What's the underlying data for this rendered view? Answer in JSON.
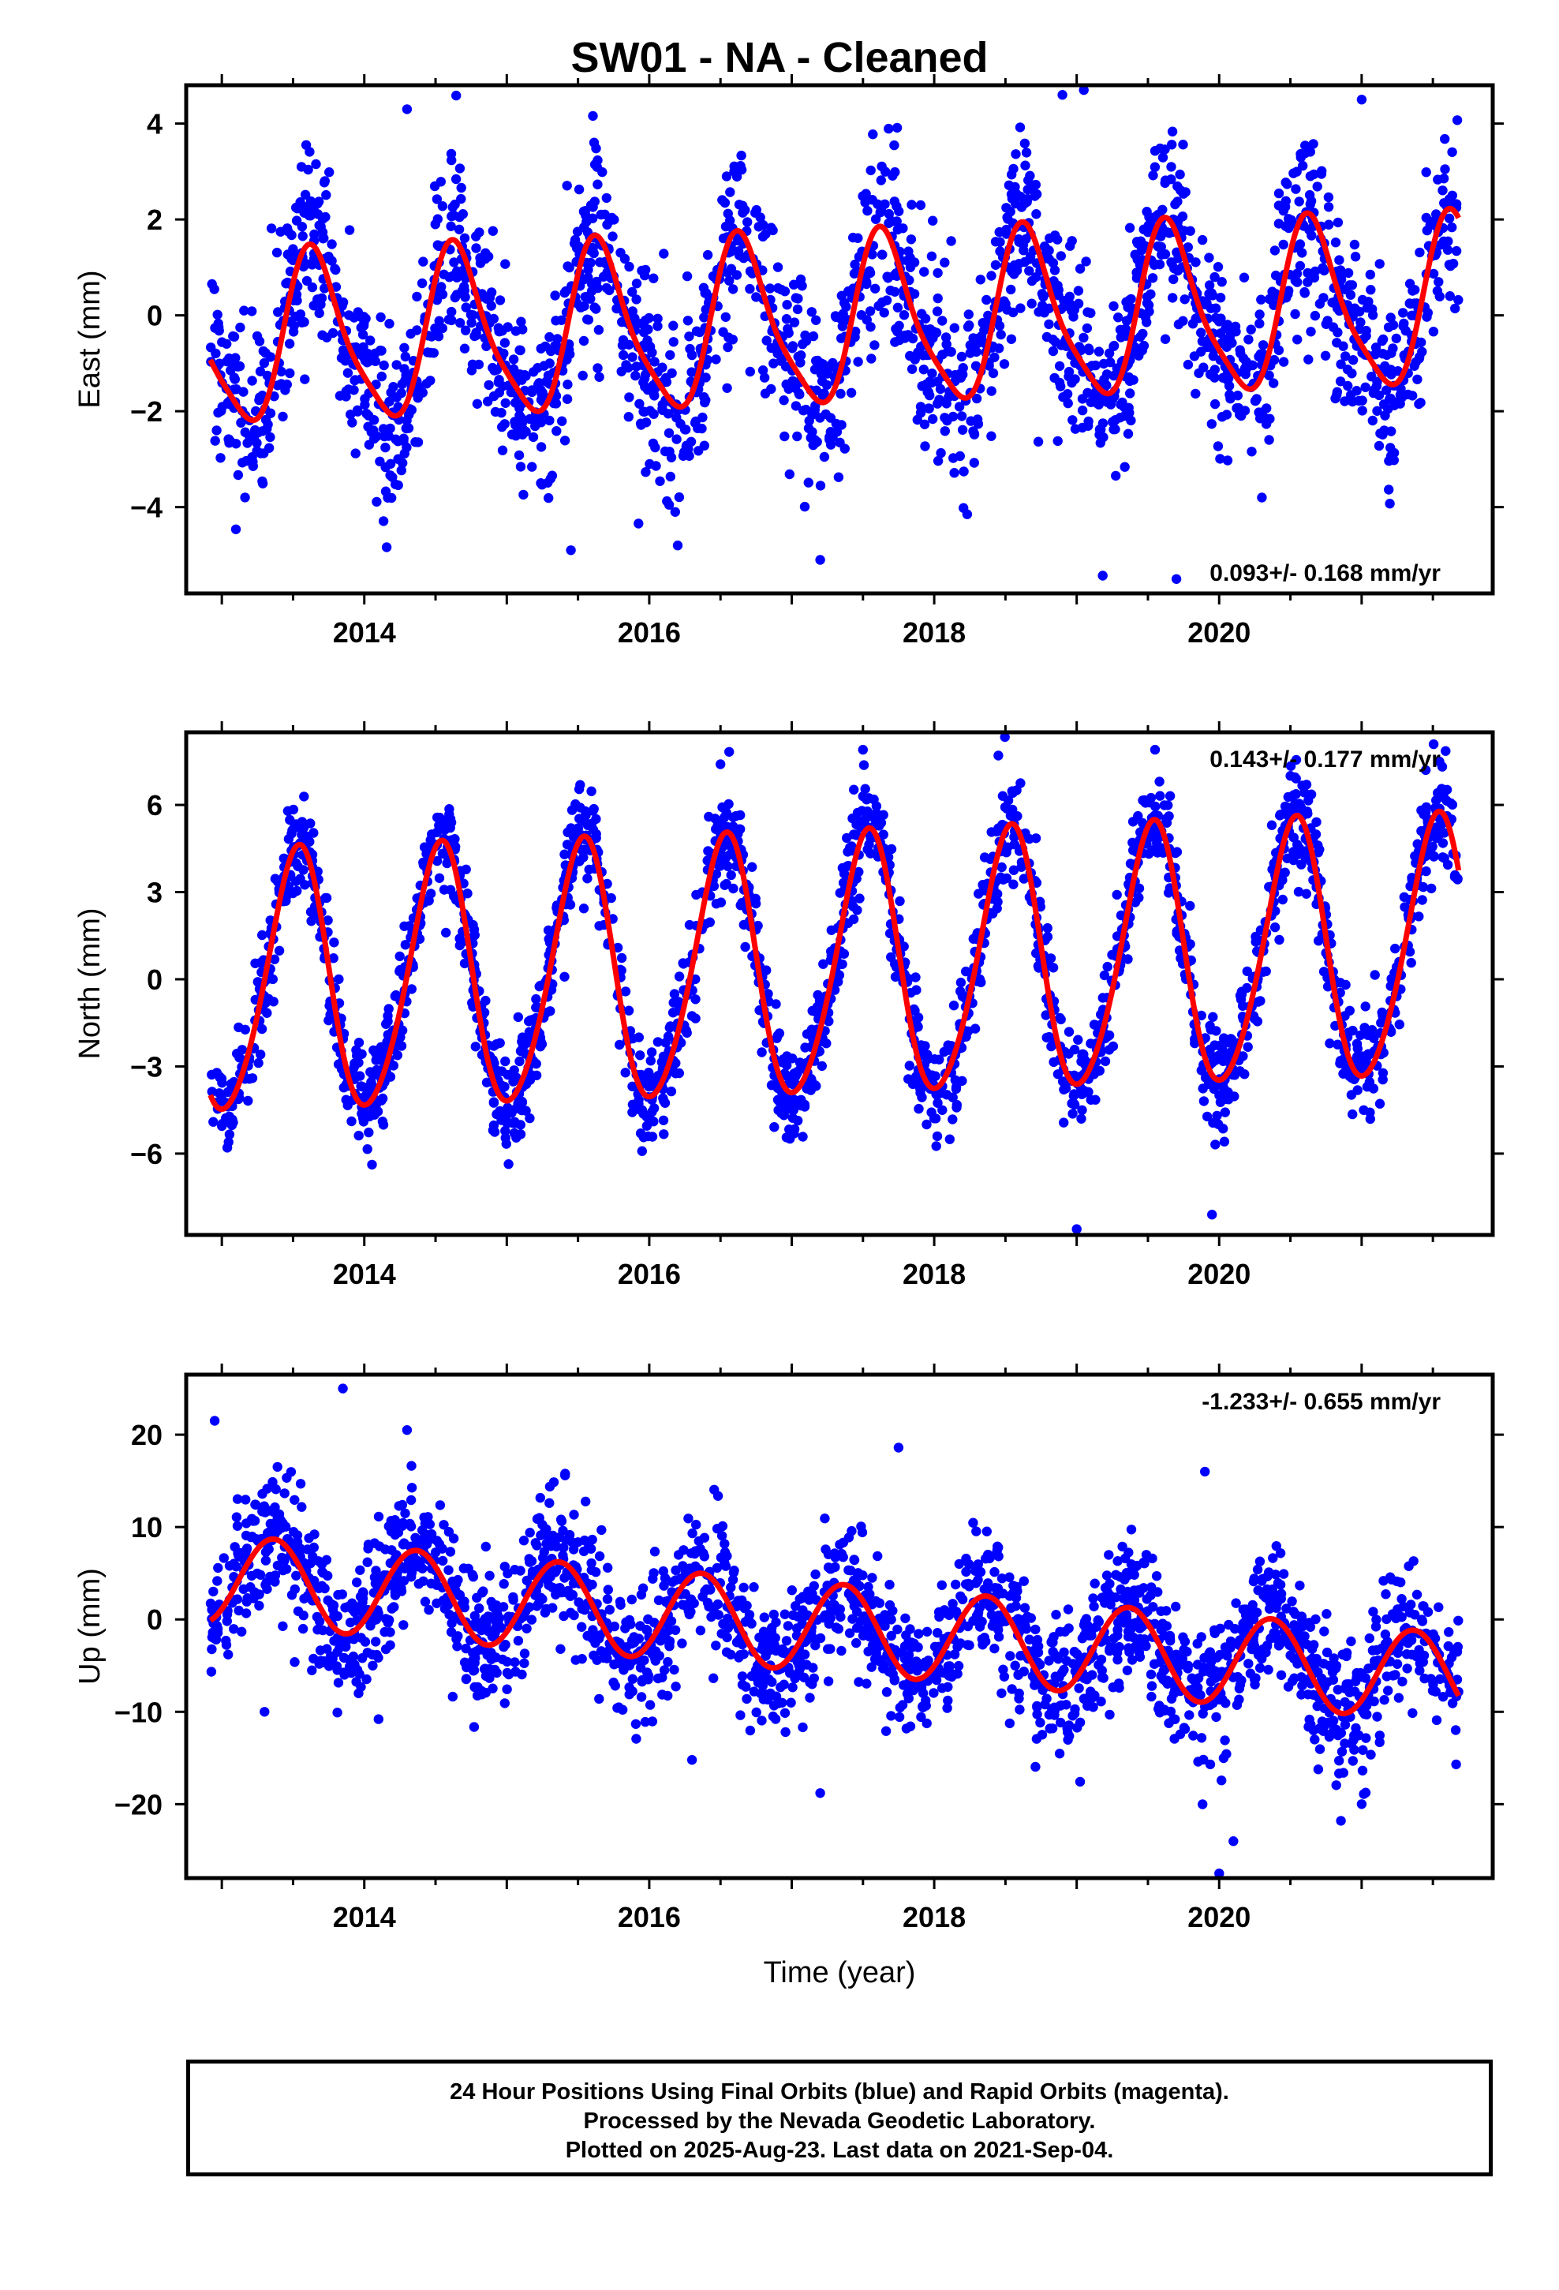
{
  "title": "SW01  - NA - Cleaned",
  "xlabel": "Time (year)",
  "footer": {
    "line1": "24 Hour Positions Using Final Orbits (blue) and Rapid Orbits (magenta).",
    "line2": "Processed by the Nevada Geodetic Laboratory.",
    "line3": "Plotted on 2025-Aug-23. Last data on 2021-Sep-04."
  },
  "colors": {
    "points": "#0000ff",
    "fit": "#ff0000",
    "axis": "#000000"
  },
  "chart_data": [
    {
      "type": "scatter",
      "name": "east",
      "ylabel": "East (mm)",
      "xlim": [
        2012.75,
        2021.92
      ],
      "ylim": [
        -5.8,
        4.8
      ],
      "xticks": [
        2014,
        2016,
        2018,
        2020
      ],
      "yticks": [
        -4,
        -2,
        0,
        2,
        4
      ],
      "ytick_labels": [
        "−4",
        "−2",
        "0",
        "2",
        "4"
      ],
      "rate_label": "0.093+/- 0.168 mm/yr",
      "rate_position": "bottom-right",
      "series": [
        {
          "name": "",
          "kind": "points",
          "x_range": [
            2012.92,
            2021.68
          ],
          "description_of_points": "",
          "noise_sd": 0.95
        }
      ],
      "model": {
        "intercept": -0.2,
        "rate": 0.093,
        "sin_amp": -1.4,
        "cos_amp": -1.0,
        "semi_sin": 0.3,
        "semi_cos": 0.2
      },
      "fit_x_range": [
        2012.92,
        2021.68
      ],
      "outliers": [
        [
          2014.3,
          4.3
        ],
        [
          2015.45,
          -4.9
        ],
        [
          2016.2,
          -4.8
        ],
        [
          2017.2,
          -5.1
        ],
        [
          2018.9,
          4.6
        ],
        [
          2019.05,
          4.7
        ],
        [
          2019.7,
          -5.5
        ],
        [
          2020.3,
          -3.8
        ],
        [
          2021.0,
          4.5
        ]
      ]
    },
    {
      "type": "scatter",
      "name": "north",
      "ylabel": "North (mm)",
      "xlim": [
        2012.75,
        2021.92
      ],
      "ylim": [
        -8.8,
        8.5
      ],
      "xticks": [
        2014,
        2016,
        2018,
        2020
      ],
      "yticks": [
        -6,
        -3,
        0,
        3,
        6
      ],
      "ytick_labels": [
        "−6",
        "−3",
        "0",
        "3",
        "6"
      ],
      "rate_label": "0.143+/- 0.177 mm/yr",
      "rate_position": "top-right",
      "series": [
        {
          "name": "",
          "kind": "points",
          "x_range": [
            2012.92,
            2021.68
          ],
          "noise_sd": 0.9
        }
      ],
      "model": {
        "intercept": 0.3,
        "rate": 0.143,
        "sin_amp": -0.8,
        "cos_amp": -4.4,
        "semi_sin": 0.4,
        "semi_cos": 0.2
      },
      "fit_x_range": [
        2012.92,
        2021.68
      ],
      "outliers": [
        [
          2016.5,
          7.4
        ],
        [
          2017.5,
          7.9
        ],
        [
          2018.45,
          7.7
        ],
        [
          2019.0,
          -8.6
        ],
        [
          2019.55,
          7.9
        ],
        [
          2019.95,
          -8.1
        ],
        [
          2020.5,
          7.0
        ],
        [
          2021.45,
          7.2
        ]
      ]
    },
    {
      "type": "scatter",
      "name": "up",
      "ylabel": "Up (mm)",
      "xlim": [
        2012.75,
        2021.92
      ],
      "ylim": [
        -28,
        26.5
      ],
      "xticks": [
        2014,
        2016,
        2018,
        2020
      ],
      "yticks": [
        -20,
        -10,
        0,
        10,
        20
      ],
      "ytick_labels": [
        "−20",
        "−10",
        "0",
        "10",
        "20"
      ],
      "rate_label": "-1.233+/- 0.655 mm/yr",
      "rate_position": "top-right",
      "series": [
        {
          "name": "",
          "kind": "points",
          "x_range": [
            2012.92,
            2021.68
          ],
          "noise_sd": 3.6
        }
      ],
      "model": {
        "intercept": -0.6,
        "rate": -1.233,
        "sin_amp": 3.6,
        "cos_amp": -3.2,
        "semi_sin": 0.0,
        "semi_cos": 0.0
      },
      "fit_x_range": [
        2012.92,
        2021.68
      ],
      "outliers": [
        [
          2012.95,
          21.5
        ],
        [
          2013.85,
          25.0
        ],
        [
          2014.3,
          20.5
        ],
        [
          2013.3,
          -10.0
        ],
        [
          2014.1,
          -10.8
        ],
        [
          2016.3,
          -15.2
        ],
        [
          2017.2,
          -18.8
        ],
        [
          2017.75,
          18.6
        ],
        [
          2020.0,
          -27.5
        ],
        [
          2020.1,
          -24.0
        ],
        [
          2019.9,
          16.0
        ],
        [
          2021.0,
          -20.0
        ]
      ]
    }
  ]
}
